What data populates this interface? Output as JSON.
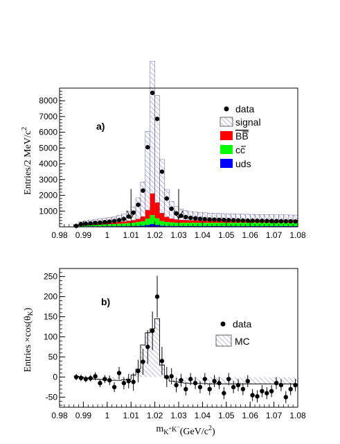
{
  "chart_data": [
    {
      "type": "bar",
      "panel_label": "a)",
      "ylabel": "Entries/2 MeV/c²",
      "xlim": [
        0.98,
        1.08
      ],
      "ylim": [
        0,
        8800
      ],
      "bin_width": 0.002,
      "x_ticks": [
        "0.98",
        "0.99",
        "1",
        "1.01",
        "1.02",
        "1.03",
        "1.04",
        "1.05",
        "1.06",
        "1.07",
        "1.08"
      ],
      "y_ticks": [
        "1000",
        "2000",
        "3000",
        "4000",
        "5000",
        "6000",
        "7000",
        "8000"
      ],
      "legend": [
        {
          "label": "data",
          "marker": "dot"
        },
        {
          "label": "signal",
          "marker": "hatch"
        },
        {
          "label": "B̅B̅",
          "marker": "red"
        },
        {
          "label": "c̅c̅",
          "marker": "green"
        },
        {
          "label": "uds",
          "marker": "blue"
        }
      ],
      "legend_text": {
        "data": "data",
        "signal": "signal",
        "bb": "BB",
        "cc": "cc",
        "uds": "uds"
      },
      "legend_placement": "top-right",
      "arrows_at_x": [
        1.01,
        1.03
      ],
      "bins_low_edge": [
        0.986,
        0.988,
        0.99,
        0.992,
        0.994,
        0.996,
        0.998,
        1.0,
        1.002,
        1.004,
        1.006,
        1.008,
        1.01,
        1.012,
        1.014,
        1.016,
        1.018,
        1.02,
        1.022,
        1.024,
        1.026,
        1.028,
        1.03,
        1.032,
        1.034,
        1.036,
        1.038,
        1.04,
        1.042,
        1.044,
        1.046,
        1.048,
        1.05,
        1.052,
        1.054,
        1.056,
        1.058,
        1.06,
        1.062,
        1.064,
        1.066,
        1.068,
        1.07,
        1.072,
        1.074,
        1.076,
        1.078
      ],
      "series": [
        {
          "name": "uds",
          "values": [
            0,
            20,
            25,
            30,
            30,
            30,
            35,
            35,
            35,
            40,
            40,
            45,
            50,
            55,
            70,
            110,
            180,
            120,
            70,
            55,
            50,
            45,
            45,
            45,
            45,
            45,
            45,
            45,
            45,
            45,
            45,
            45,
            45,
            45,
            45,
            45,
            45,
            45,
            45,
            45,
            45,
            45,
            45,
            45,
            45,
            45,
            45
          ]
        },
        {
          "name": "cc",
          "values": [
            0,
            60,
            80,
            90,
            100,
            110,
            120,
            130,
            140,
            150,
            170,
            190,
            210,
            240,
            280,
            400,
            560,
            420,
            300,
            250,
            230,
            220,
            210,
            210,
            210,
            210,
            210,
            210,
            210,
            210,
            210,
            210,
            210,
            210,
            210,
            210,
            210,
            210,
            210,
            210,
            210,
            210,
            210,
            210,
            210,
            210,
            210
          ]
        },
        {
          "name": "BB",
          "values": [
            0,
            40,
            60,
            70,
            80,
            85,
            90,
            95,
            100,
            110,
            120,
            140,
            160,
            200,
            300,
            550,
            1370,
            1000,
            500,
            320,
            240,
            200,
            180,
            170,
            160,
            160,
            150,
            150,
            150,
            150,
            150,
            150,
            150,
            150,
            150,
            150,
            150,
            150,
            150,
            150,
            150,
            150,
            150,
            150,
            150,
            150,
            150
          ]
        },
        {
          "name": "signal",
          "values": [
            30,
            200,
            220,
            240,
            260,
            280,
            300,
            330,
            370,
            420,
            500,
            620,
            850,
            1350,
            2200,
            5000,
            8400,
            6800,
            3400,
            1750,
            1100,
            820,
            680,
            600,
            550,
            520,
            500,
            480,
            460,
            450,
            440,
            430,
            420,
            410,
            400,
            395,
            390,
            385,
            380,
            375,
            370,
            365,
            360,
            355,
            350,
            345,
            340
          ]
        },
        {
          "name": "data",
          "values": [
            60,
            170,
            200,
            220,
            250,
            270,
            300,
            330,
            370,
            420,
            500,
            650,
            900,
            1400,
            2300,
            5050,
            8500,
            6850,
            3500,
            1800,
            1150,
            850,
            700,
            620,
            570,
            540,
            510,
            490,
            470,
            460,
            450,
            440,
            430,
            420,
            410,
            400,
            395,
            390,
            385,
            380,
            375,
            370,
            365,
            360,
            355,
            350,
            345
          ]
        }
      ]
    },
    {
      "type": "scatter",
      "panel_label": "b)",
      "ylabel": "Entries × cos(θK)",
      "xlabel": "mK+K− (GeV/c²)",
      "xlim": [
        0.98,
        1.08
      ],
      "ylim": [
        -75,
        270
      ],
      "bin_width": 0.002,
      "x_ticks": [
        "0.98",
        "0.99",
        "1",
        "1.01",
        "1.02",
        "1.03",
        "1.04",
        "1.05",
        "1.06",
        "1.07",
        "1.08"
      ],
      "y_ticks": [
        "-50",
        "0",
        "50",
        "100",
        "150",
        "200",
        "250"
      ],
      "legend": [
        {
          "label": "data",
          "marker": "dot"
        },
        {
          "label": "MC",
          "marker": "hatch"
        }
      ],
      "legend_placement": "right",
      "series": [
        {
          "name": "data",
          "x": [
            0.987,
            0.989,
            0.991,
            0.993,
            0.995,
            0.997,
            0.999,
            1.001,
            1.003,
            1.005,
            1.007,
            1.009,
            1.011,
            1.013,
            1.015,
            1.017,
            1.019,
            1.021,
            1.023,
            1.025,
            1.027,
            1.029,
            1.031,
            1.033,
            1.035,
            1.037,
            1.039,
            1.041,
            1.043,
            1.045,
            1.047,
            1.049,
            1.051,
            1.053,
            1.055,
            1.057,
            1.059,
            1.061,
            1.063,
            1.065,
            1.067,
            1.069,
            1.071,
            1.073,
            1.075,
            1.077,
            1.079
          ],
          "y": [
            0,
            -2,
            -5,
            -3,
            2,
            -15,
            -5,
            -8,
            -25,
            10,
            -15,
            -10,
            -12,
            15,
            38,
            75,
            115,
            200,
            40,
            0,
            2,
            -20,
            -8,
            -30,
            -5,
            -15,
            -25,
            -5,
            -30,
            -10,
            -15,
            -40,
            -5,
            -25,
            -20,
            -30,
            -10,
            -45,
            -48,
            -35,
            -40,
            -35,
            -15,
            -20,
            -50,
            -30,
            -20
          ],
          "err": [
            8,
            8,
            8,
            8,
            10,
            10,
            10,
            12,
            12,
            15,
            15,
            18,
            22,
            28,
            32,
            42,
            48,
            52,
            35,
            25,
            20,
            18,
            16,
            16,
            15,
            15,
            15,
            15,
            15,
            15,
            15,
            15,
            15,
            15,
            15,
            15,
            15,
            15,
            15,
            15,
            15,
            15,
            15,
            15,
            15,
            15,
            15
          ]
        },
        {
          "name": "MC",
          "bins_low_edge": [
            0.986,
            0.988,
            0.99,
            0.992,
            0.994,
            0.996,
            0.998,
            1.0,
            1.002,
            1.004,
            1.006,
            1.008,
            1.01,
            1.012,
            1.014,
            1.016,
            1.018,
            1.02,
            1.022,
            1.024,
            1.026,
            1.028,
            1.03,
            1.032,
            1.034,
            1.036,
            1.038,
            1.04,
            1.042,
            1.044,
            1.046,
            1.048,
            1.05,
            1.052,
            1.054,
            1.056,
            1.058,
            1.06,
            1.062,
            1.064,
            1.066,
            1.068,
            1.07,
            1.072,
            1.074,
            1.076,
            1.078
          ],
          "values": [
            2,
            0,
            -2,
            -4,
            -5,
            -6,
            -7,
            -8,
            -8,
            -8,
            -7,
            -5,
            5,
            20,
            80,
            110,
            120,
            145,
            30,
            -2,
            -10,
            -12,
            -14,
            -15,
            -16,
            -16,
            -16,
            -16,
            -17,
            -17,
            -17,
            -17,
            -17,
            -17,
            -17,
            -17,
            -17,
            -17,
            -17,
            -17,
            -17,
            -17,
            -17,
            -17,
            -17,
            -17,
            -17
          ]
        }
      ]
    }
  ]
}
